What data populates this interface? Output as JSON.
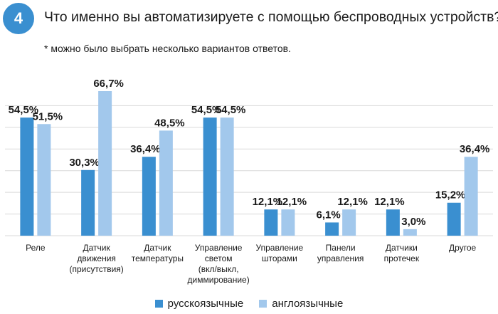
{
  "header": {
    "badge": "4",
    "title": "Что именно вы автоматизируете с помощью беспроводных устройств? *",
    "note": "* можно было выбрать несколько вариантов ответов."
  },
  "colors": {
    "series1": "#3a8fd0",
    "series2": "#a2c8ec",
    "grid": "#d9d9d9"
  },
  "chart_data": {
    "type": "bar",
    "title": "",
    "xlabel": "",
    "ylabel": "",
    "ylim": [
      0,
      80
    ],
    "grid": true,
    "legend_position": "bottom",
    "categories": [
      [
        "Реле"
      ],
      [
        "Датчик",
        "движения",
        "(присутствия)"
      ],
      [
        "Датчик",
        "температуры"
      ],
      [
        "Управление",
        "светом",
        "(вкл/выкл,",
        "диммирование)"
      ],
      [
        "Управление",
        "шторами"
      ],
      [
        "Панели",
        "управления"
      ],
      [
        "Датчики",
        "протечек"
      ],
      [
        "Другое"
      ]
    ],
    "series": [
      {
        "name": "русскоязычные",
        "values": [
          54.5,
          30.3,
          36.4,
          54.5,
          12.1,
          6.1,
          12.1,
          15.2
        ],
        "labels": [
          "54,5%",
          "30,3%",
          "36,4%",
          "54,5%",
          "12,1%",
          "6,1%",
          "12,1%",
          "15,2%"
        ]
      },
      {
        "name": "англоязычные",
        "values": [
          51.5,
          66.7,
          48.5,
          54.5,
          12.1,
          12.1,
          3.0,
          36.4
        ],
        "labels": [
          "51,5%",
          "66,7%",
          "48,5%",
          "54,5%",
          "12,1%",
          "12,1%",
          "3,0%",
          "36,4%"
        ]
      }
    ]
  }
}
